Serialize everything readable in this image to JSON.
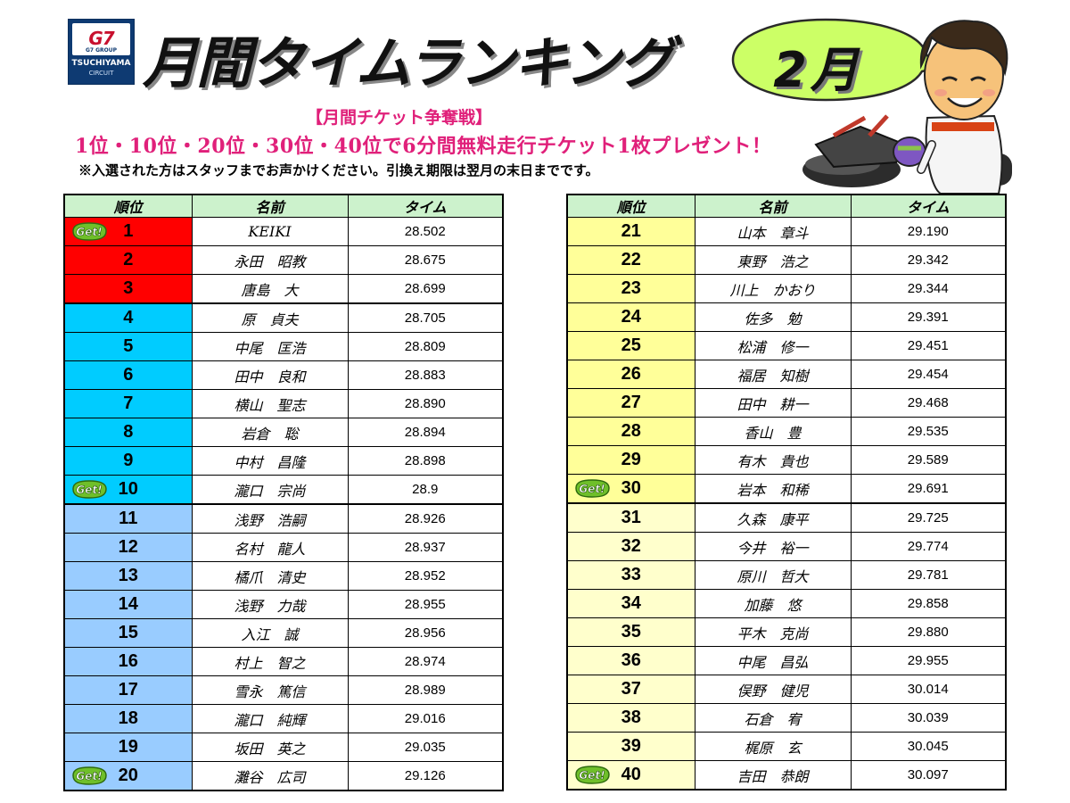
{
  "header": {
    "logo_mark": "G7",
    "logo_mark_sub": "G7 GROUP",
    "logo_name": "TSUCHIYAMA",
    "logo_sub": "CIRCUIT",
    "title": "月間タイムランキング",
    "month": "2月"
  },
  "campaign": {
    "title": "【月間チケット争奪戦】",
    "text": "1位・10位・20位・30位・40位で6分間無料走行チケット1枚プレゼント！",
    "note": "※入選された方はスタッフまでお声かけください。引換え期限は翌月の末日までです。"
  },
  "table": {
    "headers": {
      "rank": "順位",
      "name": "名前",
      "time": "タイム"
    },
    "badge_label": "Get!"
  },
  "colors": {
    "top3": "#ff0000",
    "rank4_10": "#00ccff",
    "rank11_20": "#99ccff",
    "rank21_30": "#ffff99",
    "rank31_40": "#ffffcc",
    "header_bg": "#ccf2cc",
    "campaign_pink": "#e0207a",
    "badge_green": "#6fbf2a"
  },
  "rankings_left": [
    {
      "rank": "1",
      "name": "KEIKI",
      "time": "28.502",
      "get": true
    },
    {
      "rank": "2",
      "name": "永田　昭教",
      "time": "28.675"
    },
    {
      "rank": "3",
      "name": "唐島　大",
      "time": "28.699"
    },
    {
      "rank": "4",
      "name": "原　貞夫",
      "time": "28.705"
    },
    {
      "rank": "5",
      "name": "中尾　匡浩",
      "time": "28.809"
    },
    {
      "rank": "6",
      "name": "田中　良和",
      "time": "28.883"
    },
    {
      "rank": "7",
      "name": "横山　聖志",
      "time": "28.890"
    },
    {
      "rank": "8",
      "name": "岩倉　聡",
      "time": "28.894"
    },
    {
      "rank": "9",
      "name": "中村　昌隆",
      "time": "28.898"
    },
    {
      "rank": "10",
      "name": "瀧口　宗尚",
      "time": "28.9",
      "get": true
    },
    {
      "rank": "11",
      "name": "浅野　浩嗣",
      "time": "28.926"
    },
    {
      "rank": "12",
      "name": "名村　龍人",
      "time": "28.937"
    },
    {
      "rank": "13",
      "name": "橘爪　清史",
      "time": "28.952"
    },
    {
      "rank": "14",
      "name": "浅野　力哉",
      "time": "28.955"
    },
    {
      "rank": "15",
      "name": "入江　誠",
      "time": "28.956"
    },
    {
      "rank": "16",
      "name": "村上　智之",
      "time": "28.974"
    },
    {
      "rank": "17",
      "name": "雪永　篤信",
      "time": "28.989"
    },
    {
      "rank": "18",
      "name": "瀧口　純輝",
      "time": "29.016"
    },
    {
      "rank": "19",
      "name": "坂田　英之",
      "time": "29.035"
    },
    {
      "rank": "20",
      "name": "灘谷　広司",
      "time": "29.126",
      "get": true
    }
  ],
  "rankings_right": [
    {
      "rank": "21",
      "name": "山本　章斗",
      "time": "29.190"
    },
    {
      "rank": "22",
      "name": "東野　浩之",
      "time": "29.342"
    },
    {
      "rank": "23",
      "name": "川上　かおり",
      "time": "29.344"
    },
    {
      "rank": "24",
      "name": "佐多　勉",
      "time": "29.391"
    },
    {
      "rank": "25",
      "name": "松浦　修一",
      "time": "29.451"
    },
    {
      "rank": "26",
      "name": "福居　知樹",
      "time": "29.454"
    },
    {
      "rank": "27",
      "name": "田中　耕一",
      "time": "29.468"
    },
    {
      "rank": "28",
      "name": "香山　豊",
      "time": "29.535"
    },
    {
      "rank": "29",
      "name": "有木　貴也",
      "time": "29.589"
    },
    {
      "rank": "30",
      "name": "岩本　和稀",
      "time": "29.691",
      "get": true
    },
    {
      "rank": "31",
      "name": "久森　康平",
      "time": "29.725"
    },
    {
      "rank": "32",
      "name": "今井　裕一",
      "time": "29.774"
    },
    {
      "rank": "33",
      "name": "原川　哲大",
      "time": "29.781"
    },
    {
      "rank": "34",
      "name": "加藤　悠",
      "time": "29.858"
    },
    {
      "rank": "35",
      "name": "平木　克尚",
      "time": "29.880"
    },
    {
      "rank": "36",
      "name": "中尾　昌弘",
      "time": "29.955"
    },
    {
      "rank": "37",
      "name": "俣野　健児",
      "time": "30.014"
    },
    {
      "rank": "38",
      "name": "石倉　宥",
      "time": "30.039"
    },
    {
      "rank": "39",
      "name": "梶原　玄",
      "time": "30.045"
    },
    {
      "rank": "40",
      "name": "吉田　恭朗",
      "time": "30.097",
      "get": true
    }
  ]
}
